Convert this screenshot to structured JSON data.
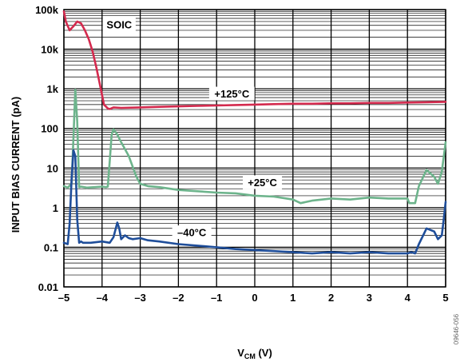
{
  "chart_data": {
    "type": "line",
    "xlabel_main": "V",
    "xlabel_sub": "CM",
    "xlabel_unit": " (V)",
    "ylabel": "INPUT BIAS CURRENT (pA)",
    "xlim": [
      -5,
      5
    ],
    "ylim": [
      0.01,
      100000
    ],
    "y_scale": "log",
    "grid": true,
    "x_ticks": [
      {
        "v": -5,
        "label": "–5"
      },
      {
        "v": -4,
        "label": "–4"
      },
      {
        "v": -3,
        "label": "–3"
      },
      {
        "v": -2,
        "label": "–2"
      },
      {
        "v": -1,
        "label": "–1"
      },
      {
        "v": 0,
        "label": "0"
      },
      {
        "v": 1,
        "label": "1"
      },
      {
        "v": 2,
        "label": "2"
      },
      {
        "v": 3,
        "label": "3"
      },
      {
        "v": 4,
        "label": "4"
      },
      {
        "v": 5,
        "label": "5"
      }
    ],
    "y_ticks": [
      {
        "v": 100000,
        "label": "100k"
      },
      {
        "v": 10000,
        "label": "10k"
      },
      {
        "v": 1000,
        "label": "1k"
      },
      {
        "v": 100,
        "label": "100"
      },
      {
        "v": 10,
        "label": "10"
      },
      {
        "v": 1,
        "label": "1"
      },
      {
        "v": 0.1,
        "label": "0.1"
      },
      {
        "v": 0.01,
        "label": "0.01"
      }
    ],
    "annotations": [
      {
        "text": "SOIC",
        "x": -3.55,
        "y": 42000
      },
      {
        "text": "+125°C",
        "x": -0.6,
        "y": 760
      },
      {
        "text": "+25°C",
        "x": 0.2,
        "y": 4.4
      },
      {
        "text": "–40°C",
        "x": -1.65,
        "y": 0.24
      }
    ],
    "figure_id": "09646-056",
    "series": [
      {
        "color": "#d42a4e",
        "x": [
          -5.0,
          -4.95,
          -4.85,
          -4.75,
          -4.65,
          -4.55,
          -4.45,
          -4.35,
          -4.25,
          -4.15,
          -4.05,
          -3.95,
          -3.85,
          -3.8,
          -3.7,
          -3.5,
          -3.0,
          -2.5,
          -2.0,
          -1.5,
          -1.0,
          -0.5,
          0.0,
          0.5,
          1.0,
          1.5,
          2.0,
          2.5,
          3.0,
          3.5,
          4.0,
          4.5,
          5.0
        ],
        "y": [
          90000,
          50000,
          30000,
          38000,
          50000,
          45000,
          30000,
          18000,
          9000,
          3500,
          1200,
          400,
          320,
          310,
          340,
          330,
          340,
          350,
          360,
          370,
          380,
          390,
          400,
          410,
          420,
          420,
          430,
          430,
          440,
          440,
          450,
          460,
          470
        ]
      },
      {
        "color": "#6db48c",
        "x": [
          -5.0,
          -4.9,
          -4.8,
          -4.75,
          -4.7,
          -4.65,
          -4.6,
          -4.55,
          -4.4,
          -4.2,
          -4.0,
          -3.9,
          -3.85,
          -3.8,
          -3.75,
          -3.7,
          -3.6,
          -3.5,
          -3.3,
          -3.1,
          -3.0,
          -2.8,
          -2.5,
          -2.0,
          -1.5,
          -1.0,
          -0.5,
          0.0,
          0.5,
          1.0,
          1.2,
          1.5,
          2.0,
          2.5,
          3.0,
          3.5,
          4.0,
          4.05,
          4.1,
          4.2,
          4.3,
          4.5,
          4.7,
          4.8,
          4.9,
          5.0
        ],
        "y": [
          3.5,
          3.2,
          4.0,
          60,
          950,
          150,
          3.3,
          3.4,
          3.2,
          3.3,
          3.4,
          3.3,
          3.4,
          15,
          70,
          95,
          70,
          45,
          20,
          6,
          4.0,
          3.5,
          3.3,
          2.8,
          2.6,
          2.4,
          2.3,
          2.0,
          1.9,
          1.6,
          1.3,
          1.5,
          1.7,
          1.6,
          1.8,
          1.7,
          1.7,
          1.3,
          1.3,
          1.3,
          3.5,
          9.0,
          6.0,
          4.0,
          8.0,
          45
        ]
      },
      {
        "color": "#1f4e9a",
        "x": [
          -5.0,
          -4.9,
          -4.85,
          -4.8,
          -4.75,
          -4.7,
          -4.65,
          -4.6,
          -4.55,
          -4.5,
          -4.3,
          -4.0,
          -3.8,
          -3.7,
          -3.6,
          -3.55,
          -3.5,
          -3.4,
          -3.3,
          -3.2,
          -3.0,
          -2.8,
          -2.5,
          -2.0,
          -1.5,
          -1.0,
          -0.5,
          0.0,
          0.5,
          1.0,
          1.5,
          2.0,
          2.5,
          3.0,
          3.5,
          4.0,
          4.1,
          4.2,
          4.3,
          4.5,
          4.7,
          4.8,
          4.9,
          4.95,
          5.0
        ],
        "y": [
          0.13,
          0.12,
          0.4,
          5,
          28,
          20,
          0.5,
          0.13,
          0.14,
          0.13,
          0.13,
          0.14,
          0.13,
          0.18,
          0.42,
          0.3,
          0.16,
          0.2,
          0.17,
          0.16,
          0.17,
          0.15,
          0.14,
          0.12,
          0.11,
          0.1,
          0.09,
          0.085,
          0.08,
          0.075,
          0.07,
          0.075,
          0.07,
          0.075,
          0.07,
          0.07,
          0.075,
          0.07,
          0.12,
          0.3,
          0.25,
          0.16,
          0.2,
          0.5,
          1.4
        ]
      }
    ]
  }
}
